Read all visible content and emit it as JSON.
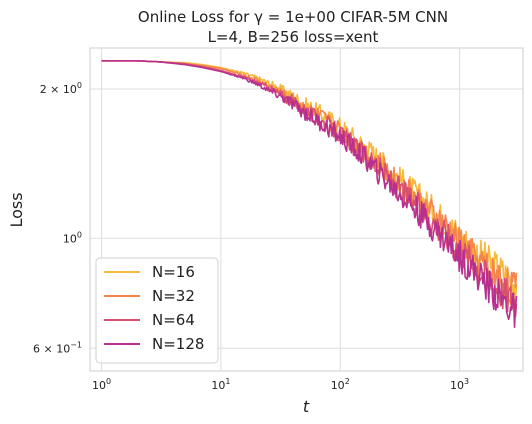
{
  "chart_data": {
    "type": "line",
    "title_line1": "Online Loss for γ = 1e+00 CIFAR-5M CNN",
    "title_line2": "L=4, B=256 loss=xent",
    "xlabel": "t",
    "ylabel": "Loss",
    "x_scale": "log",
    "y_scale": "log",
    "xlim": [
      0.8,
      3400
    ],
    "ylim": [
      0.54,
      2.42
    ],
    "x_ticks": [
      {
        "value": 1,
        "label_base": "10",
        "label_exp": "0"
      },
      {
        "value": 10,
        "label_base": "10",
        "label_exp": "1"
      },
      {
        "value": 100,
        "label_base": "10",
        "label_exp": "2"
      },
      {
        "value": 1000,
        "label_base": "10",
        "label_exp": "3"
      }
    ],
    "y_ticks": [
      {
        "value": 2.0,
        "label_base": "2 × 10",
        "label_exp": "0"
      },
      {
        "value": 1.0,
        "label_base": "10",
        "label_exp": "0"
      },
      {
        "value": 0.6,
        "label_base": "6 × 10",
        "label_exp": "−1"
      }
    ],
    "grid": true,
    "legend_position": "bottom-left",
    "x": [
      1,
      2,
      3,
      5,
      7,
      10,
      15,
      20,
      30,
      40,
      50,
      70,
      100,
      150,
      200,
      300,
      500,
      700,
      1000,
      1500,
      2000,
      3000
    ],
    "series": [
      {
        "name": "N=16",
        "color": "#f6b93b",
        "values": [
          2.28,
          2.28,
          2.27,
          2.26,
          2.24,
          2.21,
          2.16,
          2.11,
          2.02,
          1.94,
          1.87,
          1.79,
          1.69,
          1.56,
          1.47,
          1.34,
          1.2,
          1.11,
          1.02,
          0.93,
          0.88,
          0.82
        ]
      },
      {
        "name": "N=32",
        "color": "#f5844c",
        "values": [
          2.28,
          2.28,
          2.27,
          2.25,
          2.23,
          2.2,
          2.14,
          2.09,
          1.99,
          1.91,
          1.84,
          1.76,
          1.66,
          1.53,
          1.44,
          1.31,
          1.17,
          1.08,
          0.99,
          0.9,
          0.85,
          0.79
        ]
      },
      {
        "name": "N=64",
        "color": "#d9506e",
        "values": [
          2.28,
          2.28,
          2.27,
          2.25,
          2.22,
          2.18,
          2.12,
          2.07,
          1.97,
          1.89,
          1.82,
          1.73,
          1.63,
          1.5,
          1.41,
          1.28,
          1.14,
          1.05,
          0.96,
          0.87,
          0.81,
          0.75
        ]
      },
      {
        "name": "N=128",
        "color": "#b8308f",
        "values": [
          2.28,
          2.28,
          2.27,
          2.24,
          2.21,
          2.17,
          2.11,
          2.05,
          1.95,
          1.87,
          1.8,
          1.71,
          1.61,
          1.48,
          1.38,
          1.25,
          1.11,
          1.02,
          0.93,
          0.84,
          0.78,
          0.71
        ]
      }
    ],
    "noise_amplitude": [
      0,
      0,
      0,
      0,
      0,
      0,
      0.005,
      0.01,
      0.02,
      0.03,
      0.035,
      0.04,
      0.045,
      0.05,
      0.055,
      0.06,
      0.065,
      0.07,
      0.075,
      0.08,
      0.085,
      0.09
    ]
  }
}
